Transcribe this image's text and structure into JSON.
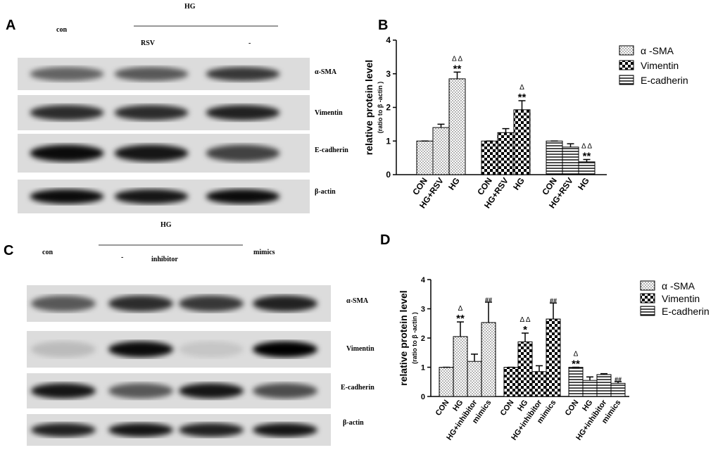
{
  "blots": [
    {
      "panel": "A",
      "header": "HG",
      "lanes": [
        "con",
        "RSV",
        "-"
      ],
      "bands": [
        "α-SMA",
        "Vimentin",
        "E-cadherin",
        "β-actin"
      ]
    },
    {
      "panel": "C",
      "header": "HG",
      "lanes": [
        "con",
        "-",
        "inhibitor",
        "mimics"
      ],
      "bands": [
        "α-SMA",
        "Vimentin",
        "E-cadherin",
        "β-actin"
      ]
    }
  ],
  "chart_data": [
    {
      "type": "bar",
      "panel": "B",
      "ylabel": "relative protein level",
      "ylabel_sub": "(ratio to β -actin )",
      "categories": [
        "CON",
        "HG+RSV",
        "HG"
      ],
      "ylim": [
        0,
        4
      ],
      "yticks": [
        0,
        1,
        2,
        3,
        4
      ],
      "series": [
        {
          "name": "α -SMA",
          "pattern": "dots",
          "values": [
            1,
            1.4,
            2.85
          ],
          "errors": [
            0,
            0.1,
            0.2
          ],
          "stars": [
            null,
            null,
            "**"
          ],
          "deltas": [
            null,
            null,
            "Δ Δ"
          ]
        },
        {
          "name": "Vimentin",
          "pattern": "checker",
          "values": [
            1,
            1.25,
            1.93
          ],
          "errors": [
            0,
            0.12,
            0.27
          ],
          "stars": [
            null,
            null,
            "**"
          ],
          "deltas": [
            null,
            null,
            "Δ"
          ]
        },
        {
          "name": "E-cadherin",
          "pattern": "hlines",
          "values": [
            1,
            0.82,
            0.38
          ],
          "errors": [
            0,
            0.1,
            0.07
          ],
          "stars": [
            null,
            null,
            "**"
          ],
          "deltas": [
            null,
            null,
            "Δ Δ"
          ]
        }
      ]
    },
    {
      "type": "bar",
      "panel": "D",
      "ylabel": "relative protein level",
      "ylabel_sub": "(ratio to β -actin )",
      "categories": [
        "CON",
        "HG",
        "HG+inhibitor",
        "mimics"
      ],
      "ylim": [
        0,
        4
      ],
      "yticks": [
        0,
        1,
        2,
        3,
        4
      ],
      "series": [
        {
          "name": "α -SMA",
          "pattern": "dots",
          "values": [
            1,
            2.05,
            1.2,
            2.53
          ],
          "errors": [
            0,
            0.5,
            0.25,
            0.7
          ],
          "stars": [
            null,
            "**",
            null,
            "##"
          ],
          "deltas": [
            null,
            "Δ",
            null,
            null
          ]
        },
        {
          "name": "Vimentin",
          "pattern": "checker",
          "values": [
            1,
            1.87,
            0.85,
            2.65
          ],
          "errors": [
            0,
            0.3,
            0.2,
            0.55
          ],
          "stars": [
            null,
            "*",
            null,
            "##"
          ],
          "deltas": [
            null,
            "Δ Δ",
            null,
            null
          ]
        },
        {
          "name": "E-cadherin",
          "pattern": "hlines",
          "values": [
            1,
            0.55,
            0.75,
            0.45
          ],
          "errors": [
            0,
            0.12,
            0.03,
            0.06
          ],
          "stars": [
            "**",
            null,
            null,
            "##"
          ],
          "deltas": [
            "Δ",
            null,
            null,
            null
          ]
        }
      ]
    }
  ]
}
